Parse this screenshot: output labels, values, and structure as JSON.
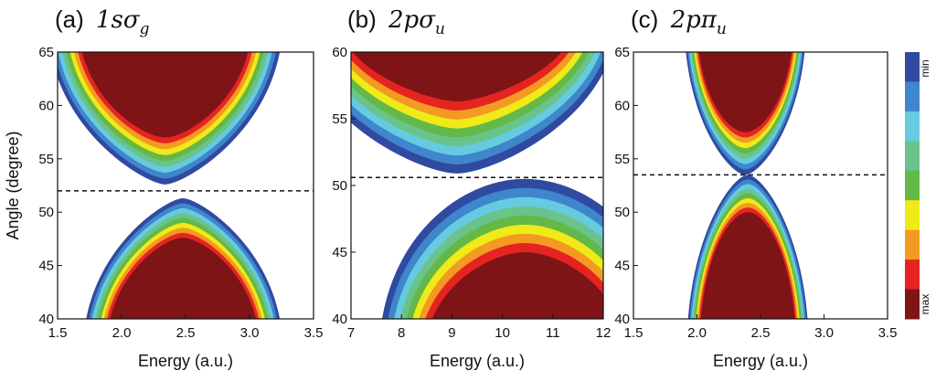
{
  "chart_data": [
    {
      "type": "heatmap",
      "panel": "(a)",
      "title_prefix": "(a)",
      "title_math": "1sσ",
      "title_sub": "g",
      "xlabel": "Energy (a.u.)",
      "ylabel": "Angle (degree)",
      "xlim": [
        1.5,
        3.5
      ],
      "ylim": [
        40,
        65
      ],
      "xticks": [
        "1.5",
        "2.0",
        "2.5",
        "3.0",
        "3.5"
      ],
      "yticks": [
        "40",
        "45",
        "50",
        "55",
        "60",
        "65"
      ],
      "dashed_line_angle": 52,
      "upper_lobe": {
        "center_energy": 2.34,
        "vertex_angle": 52.6,
        "outer_halfwidth_energy": [
          0.26,
          0.92
        ],
        "core_vertex_angle": 57.0,
        "core_halfwidth_energy": [
          0.3,
          0.68
        ]
      },
      "lower_lobe": {
        "center_energy": 2.48,
        "vertex_angle": 51.3,
        "outer_halfwidth_energy": [
          0.22,
          0.78
        ],
        "core_vertex_angle": 47.6,
        "core_halfwidth_energy": [
          0.26,
          0.6
        ]
      }
    },
    {
      "type": "heatmap",
      "panel": "(b)",
      "title_prefix": "(b)",
      "title_math": "2pσ",
      "title_sub": "u",
      "xlabel": "Energy (a.u.)",
      "ylabel": "",
      "xlim": [
        7,
        12
      ],
      "ylim": [
        40,
        60
      ],
      "xticks": [
        "7",
        "8",
        "9",
        "10",
        "11",
        "12"
      ],
      "yticks": [
        "40",
        "45",
        "50",
        "55",
        "60"
      ],
      "dashed_line_angle": 50.6,
      "upper_lobe": {
        "center_energy": 9.1,
        "vertex_angle": 50.9,
        "outer_halfwidth_energy": [
          1.2,
          3.2
        ],
        "core_vertex_angle": 56.3,
        "core_halfwidth_energy": [
          0.9,
          2.4
        ]
      },
      "lower_lobe": {
        "center_energy": 10.45,
        "vertex_angle": 50.5,
        "outer_halfwidth_energy": [
          2.2,
          2.9
        ],
        "core_vertex_angle": 45.0,
        "core_halfwidth_energy": [
          1.2,
          2.0
        ]
      }
    },
    {
      "type": "heatmap",
      "panel": "(c)",
      "title_prefix": "(c)",
      "title_math": "2pπ",
      "title_sub": "u",
      "xlabel": "Energy (a.u.)",
      "ylabel": "",
      "xlim": [
        1.5,
        3.5
      ],
      "ylim": [
        40,
        65
      ],
      "xticks": [
        "1.5",
        "2.0",
        "2.5",
        "3.0",
        "3.5"
      ],
      "yticks": [
        "40",
        "45",
        "50",
        "55",
        "60",
        "65"
      ],
      "dashed_line_angle": 53.5,
      "upper_lobe": {
        "center_energy": 2.38,
        "vertex_angle": 53.5,
        "outer_halfwidth_energy": [
          0.2,
          0.48
        ],
        "core_vertex_angle": 57.5,
        "core_halfwidth_energy": [
          0.25,
          0.38
        ]
      },
      "lower_lobe": {
        "center_energy": 2.4,
        "vertex_angle": 53.5,
        "outer_halfwidth_energy": [
          0.2,
          0.48
        ],
        "core_vertex_angle": 50.0,
        "core_halfwidth_energy": [
          0.25,
          0.38
        ]
      }
    }
  ],
  "colorbar": {
    "top_label": "min",
    "bottom_label": "max",
    "colors": [
      "#2f4aa0",
      "#3f86cc",
      "#66cbe0",
      "#6ac38a",
      "#63b847",
      "#f0ea18",
      "#f39a22",
      "#e52421",
      "#7f1416"
    ]
  }
}
